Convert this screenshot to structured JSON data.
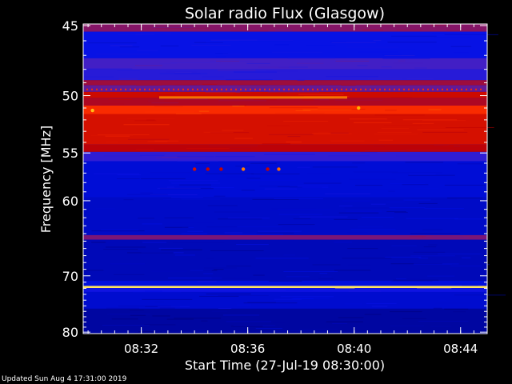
{
  "chart_data": {
    "type": "heatmap",
    "title": "Solar radio Flux (Glasgow)",
    "xlabel": "Start Time (27-Jul-19 08:30:00)",
    "ylabel": "Frequency [MHz]",
    "xlim": [
      "08:29:49",
      "08:45:00"
    ],
    "ylim": [
      80.3,
      44.9
    ],
    "x_ticks": [
      "08:32",
      "08:36",
      "08:40",
      "08:44"
    ],
    "y_ticks": [
      45,
      50,
      55,
      60,
      70,
      80
    ],
    "y_scale": "reciprocal",
    "colormap": [
      "#00007a",
      "#0010e8",
      "#3a20d0",
      "#8a1460",
      "#c00000",
      "#ff3000",
      "#ffb000",
      "#ffff90"
    ],
    "bands": [
      {
        "from": 44.9,
        "to": 45.4,
        "level": 0.42
      },
      {
        "from": 45.4,
        "to": 47.2,
        "level": 0.16
      },
      {
        "from": 47.2,
        "to": 48.0,
        "level": 0.3
      },
      {
        "from": 48.0,
        "to": 48.8,
        "level": 0.24
      },
      {
        "from": 48.8,
        "to": 49.2,
        "level": 0.48
      },
      {
        "from": 49.2,
        "to": 49.7,
        "level": 0.36
      },
      {
        "from": 49.7,
        "to": 50.2,
        "level": 0.6
      },
      {
        "from": 50.2,
        "to": 50.8,
        "level": 0.52
      },
      {
        "from": 50.8,
        "to": 51.5,
        "level": 0.7
      },
      {
        "from": 51.5,
        "to": 54.2,
        "level": 0.62
      },
      {
        "from": 54.2,
        "to": 54.9,
        "level": 0.56
      },
      {
        "from": 54.9,
        "to": 55.8,
        "level": 0.26
      },
      {
        "from": 55.8,
        "to": 59.6,
        "level": 0.12
      },
      {
        "from": 59.6,
        "to": 64.2,
        "level": 0.1
      },
      {
        "from": 64.2,
        "to": 64.8,
        "level": 0.4
      },
      {
        "from": 64.8,
        "to": 70.8,
        "level": 0.08
      },
      {
        "from": 70.8,
        "to": 71.6,
        "level": 0.13
      },
      {
        "from": 71.6,
        "to": 71.95,
        "level": 0.95
      },
      {
        "from": 71.95,
        "to": 72.6,
        "level": 0.18
      },
      {
        "from": 72.6,
        "to": 75.5,
        "level": 0.11
      },
      {
        "from": 75.5,
        "to": 80.3,
        "level": 0.05
      }
    ],
    "spots": [
      {
        "time": "08:34:00",
        "freq": 56.6,
        "level": 0.62
      },
      {
        "time": "08:34:30",
        "freq": 56.6,
        "level": 0.58
      },
      {
        "time": "08:35:00",
        "freq": 56.6,
        "level": 0.58
      },
      {
        "time": "08:35:50",
        "freq": 56.6,
        "level": 0.8
      },
      {
        "time": "08:36:45",
        "freq": 56.6,
        "level": 0.58
      },
      {
        "time": "08:37:10",
        "freq": 56.6,
        "level": 0.78
      },
      {
        "time": "08:30:10",
        "freq": 51.2,
        "level": 0.88
      },
      {
        "time": "08:40:10",
        "freq": 51.0,
        "level": 0.86
      }
    ],
    "colorbar": "none",
    "grid": false
  },
  "footer": {
    "updated": "Updated Sun Aug  4 17:31:00 2019"
  }
}
